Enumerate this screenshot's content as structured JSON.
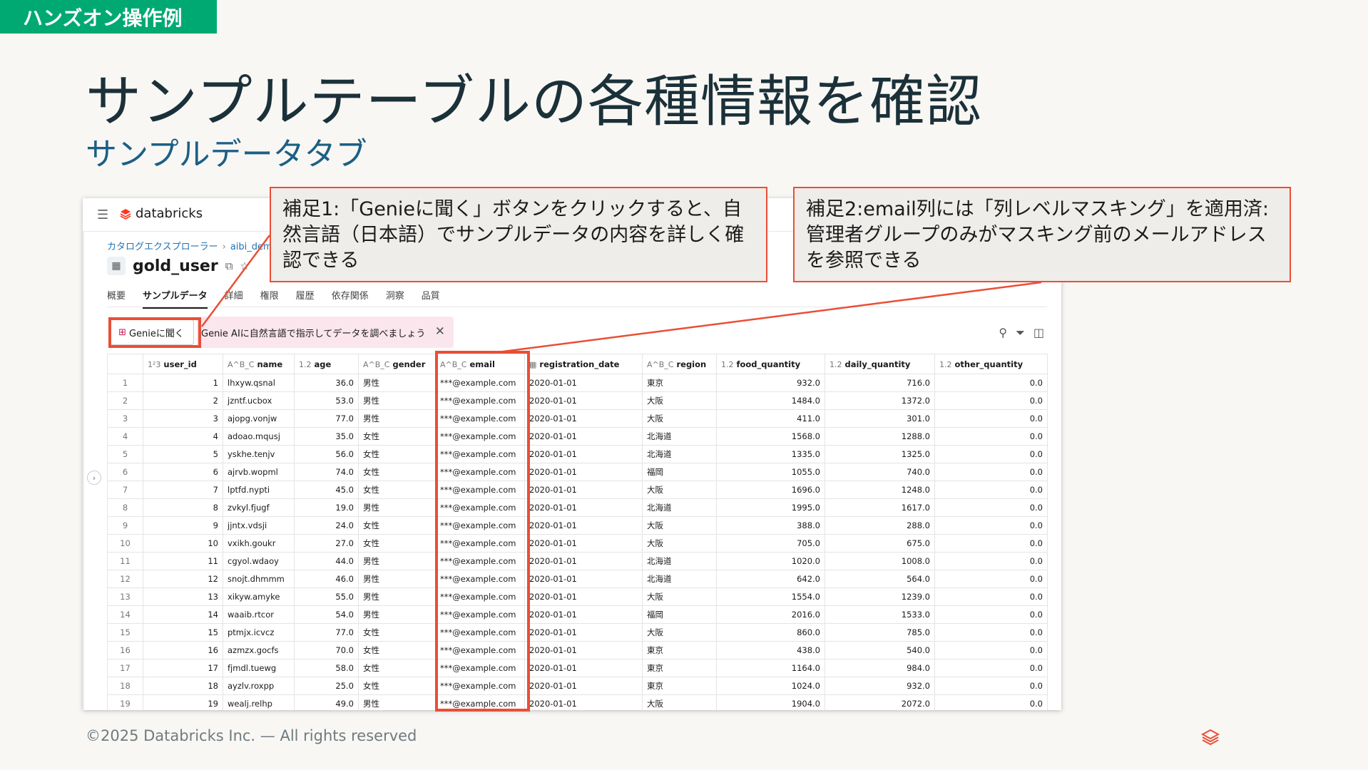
{
  "badge": "ハンズオン操作例",
  "title": "サンプルテーブルの各種情報を確認",
  "subtitle": "サンプルデータタブ",
  "app": {
    "logo_text": "databricks",
    "breadcrumb": [
      "カタログエクスプローラー",
      "aibi_dem"
    ],
    "table_name": "gold_user",
    "tabs": [
      "概要",
      "サンプルデータ",
      "詳細",
      "権限",
      "履歴",
      "依存関係",
      "洞察",
      "品質"
    ],
    "genie_button": "Genieに聞く",
    "genie_hint": "Genie AIに自然言語で指示してデータを調べましょう",
    "columns": [
      {
        "type": "1²3",
        "name": "user_id"
      },
      {
        "type": "A^B_C",
        "name": "name"
      },
      {
        "type": "1.2",
        "name": "age"
      },
      {
        "type": "A^B_C",
        "name": "gender"
      },
      {
        "type": "A^B_C",
        "name": "email"
      },
      {
        "type": "▦",
        "name": "registration_date"
      },
      {
        "type": "A^B_C",
        "name": "region"
      },
      {
        "type": "1.2",
        "name": "food_quantity"
      },
      {
        "type": "1.2",
        "name": "daily_quantity"
      },
      {
        "type": "1.2",
        "name": "other_quantity"
      }
    ],
    "rows": [
      [
        "1",
        "lhxyw.qsnal",
        "36.0",
        "男性",
        "***@example.com",
        "2020-01-01",
        "東京",
        "932.0",
        "716.0",
        "0.0"
      ],
      [
        "2",
        "jzntf.ucbox",
        "53.0",
        "男性",
        "***@example.com",
        "2020-01-01",
        "大阪",
        "1484.0",
        "1372.0",
        "0.0"
      ],
      [
        "3",
        "ajopg.vonjw",
        "77.0",
        "男性",
        "***@example.com",
        "2020-01-01",
        "大阪",
        "411.0",
        "301.0",
        "0.0"
      ],
      [
        "4",
        "adoao.mqusj",
        "35.0",
        "女性",
        "***@example.com",
        "2020-01-01",
        "北海道",
        "1568.0",
        "1288.0",
        "0.0"
      ],
      [
        "5",
        "yskhe.tenjv",
        "56.0",
        "女性",
        "***@example.com",
        "2020-01-01",
        "北海道",
        "1335.0",
        "1325.0",
        "0.0"
      ],
      [
        "6",
        "ajrvb.wopml",
        "74.0",
        "女性",
        "***@example.com",
        "2020-01-01",
        "福岡",
        "1055.0",
        "740.0",
        "0.0"
      ],
      [
        "7",
        "lptfd.nypti",
        "45.0",
        "女性",
        "***@example.com",
        "2020-01-01",
        "大阪",
        "1696.0",
        "1248.0",
        "0.0"
      ],
      [
        "8",
        "zvkyl.fjugf",
        "19.0",
        "男性",
        "***@example.com",
        "2020-01-01",
        "北海道",
        "1995.0",
        "1617.0",
        "0.0"
      ],
      [
        "9",
        "jjntx.vdsji",
        "24.0",
        "女性",
        "***@example.com",
        "2020-01-01",
        "大阪",
        "388.0",
        "288.0",
        "0.0"
      ],
      [
        "10",
        "vxikh.goukr",
        "27.0",
        "女性",
        "***@example.com",
        "2020-01-01",
        "大阪",
        "705.0",
        "675.0",
        "0.0"
      ],
      [
        "11",
        "cgyol.wdaoy",
        "44.0",
        "男性",
        "***@example.com",
        "2020-01-01",
        "北海道",
        "1020.0",
        "1008.0",
        "0.0"
      ],
      [
        "12",
        "snojt.dhmmm",
        "46.0",
        "男性",
        "***@example.com",
        "2020-01-01",
        "北海道",
        "642.0",
        "564.0",
        "0.0"
      ],
      [
        "13",
        "xikyw.amyke",
        "55.0",
        "男性",
        "***@example.com",
        "2020-01-01",
        "大阪",
        "1554.0",
        "1239.0",
        "0.0"
      ],
      [
        "14",
        "waaib.rtcor",
        "54.0",
        "男性",
        "***@example.com",
        "2020-01-01",
        "福岡",
        "2016.0",
        "1533.0",
        "0.0"
      ],
      [
        "15",
        "ptmjx.icvcz",
        "77.0",
        "女性",
        "***@example.com",
        "2020-01-01",
        "大阪",
        "860.0",
        "785.0",
        "0.0"
      ],
      [
        "16",
        "azmzx.gocfs",
        "70.0",
        "女性",
        "***@example.com",
        "2020-01-01",
        "東京",
        "438.0",
        "540.0",
        "0.0"
      ],
      [
        "17",
        "fjmdl.tuewg",
        "58.0",
        "女性",
        "***@example.com",
        "2020-01-01",
        "東京",
        "1164.0",
        "984.0",
        "0.0"
      ],
      [
        "18",
        "ayzlv.roxpp",
        "25.0",
        "女性",
        "***@example.com",
        "2020-01-01",
        "東京",
        "1024.0",
        "932.0",
        "0.0"
      ],
      [
        "19",
        "wealj.relhp",
        "49.0",
        "男性",
        "***@example.com",
        "2020-01-01",
        "大阪",
        "1904.0",
        "2072.0",
        "0.0"
      ]
    ]
  },
  "callout1": "補足1:「Genieに聞く」ボタンをクリックすると、自然言語（日本語）でサンプルデータの内容を詳しく確認できる",
  "callout2": "補足2:email列には「列レベルマスキング」を適用済:管理者グループのみがマスキング前のメールアドレスを参照できる",
  "footer": "©2025 Databricks Inc. — All rights reserved",
  "colors": {
    "accent_red": "#ea4e36",
    "badge_green": "#00a972",
    "title": "#1b3139",
    "subtitle": "#1b5f86"
  }
}
